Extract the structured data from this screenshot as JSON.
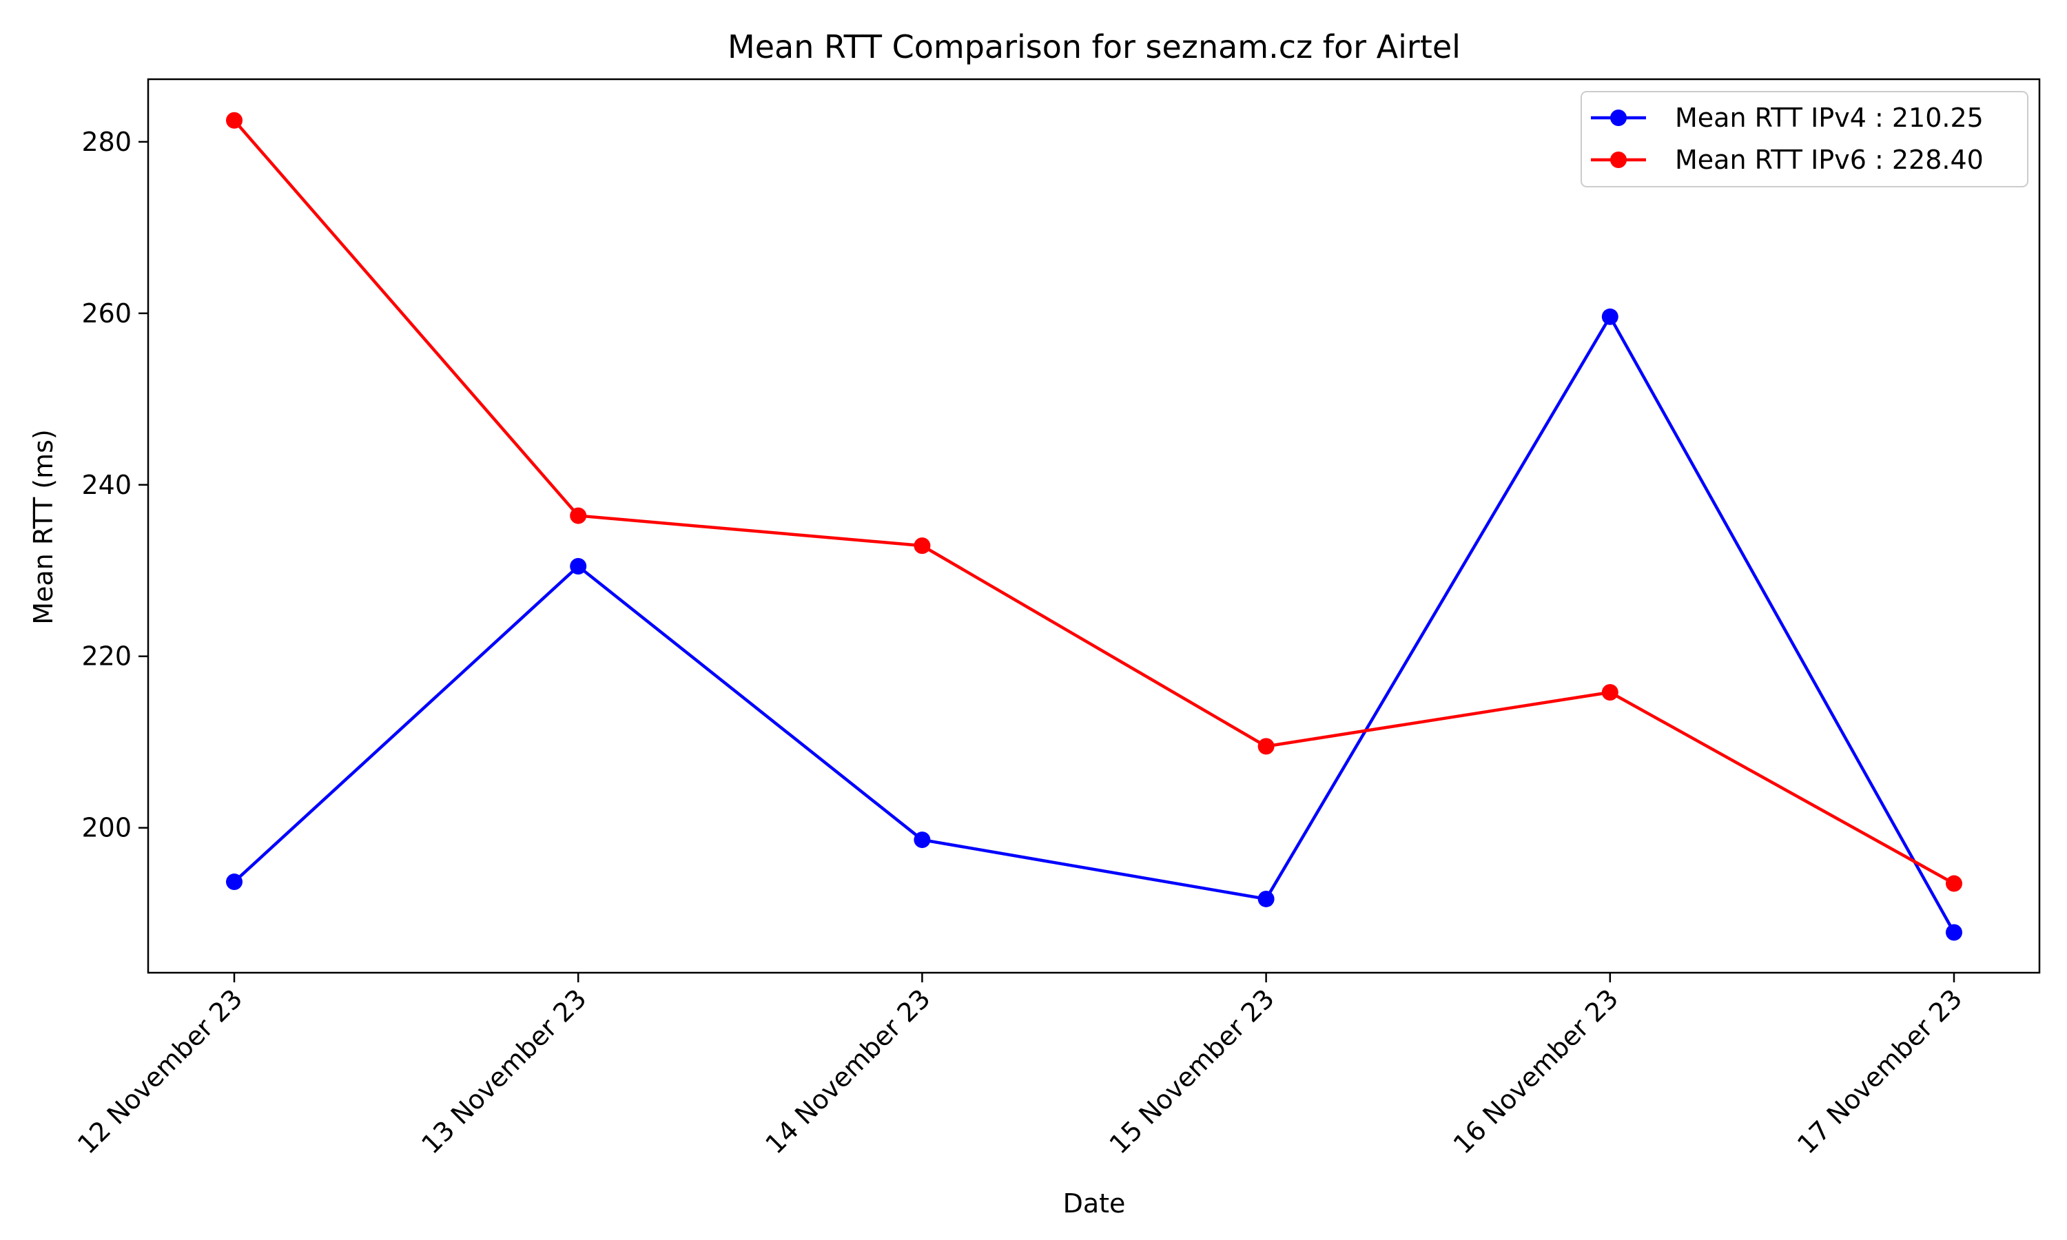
{
  "chart_data": {
    "type": "line",
    "title": "Mean RTT Comparison for seznam.cz for Airtel",
    "xlabel": "Date",
    "ylabel": "Mean RTT (ms)",
    "categories": [
      "12 November 23",
      "13 November 23",
      "14 November 23",
      "15 November 23",
      "16 November 23",
      "17 November 23"
    ],
    "ylim": [
      183.1,
      287.3
    ],
    "yticks": [
      200,
      220,
      240,
      260,
      280
    ],
    "grid": false,
    "legend_position": "top-right",
    "series": [
      {
        "name": "Mean RTT IPv4 : 210.25",
        "color": "#0000ff",
        "values": [
          193.7,
          230.5,
          198.6,
          191.7,
          259.6,
          187.8
        ]
      },
      {
        "name": "Mean RTT IPv6 : 228.40",
        "color": "#ff0000",
        "values": [
          282.5,
          236.4,
          232.9,
          209.5,
          215.8,
          193.5
        ]
      }
    ]
  }
}
